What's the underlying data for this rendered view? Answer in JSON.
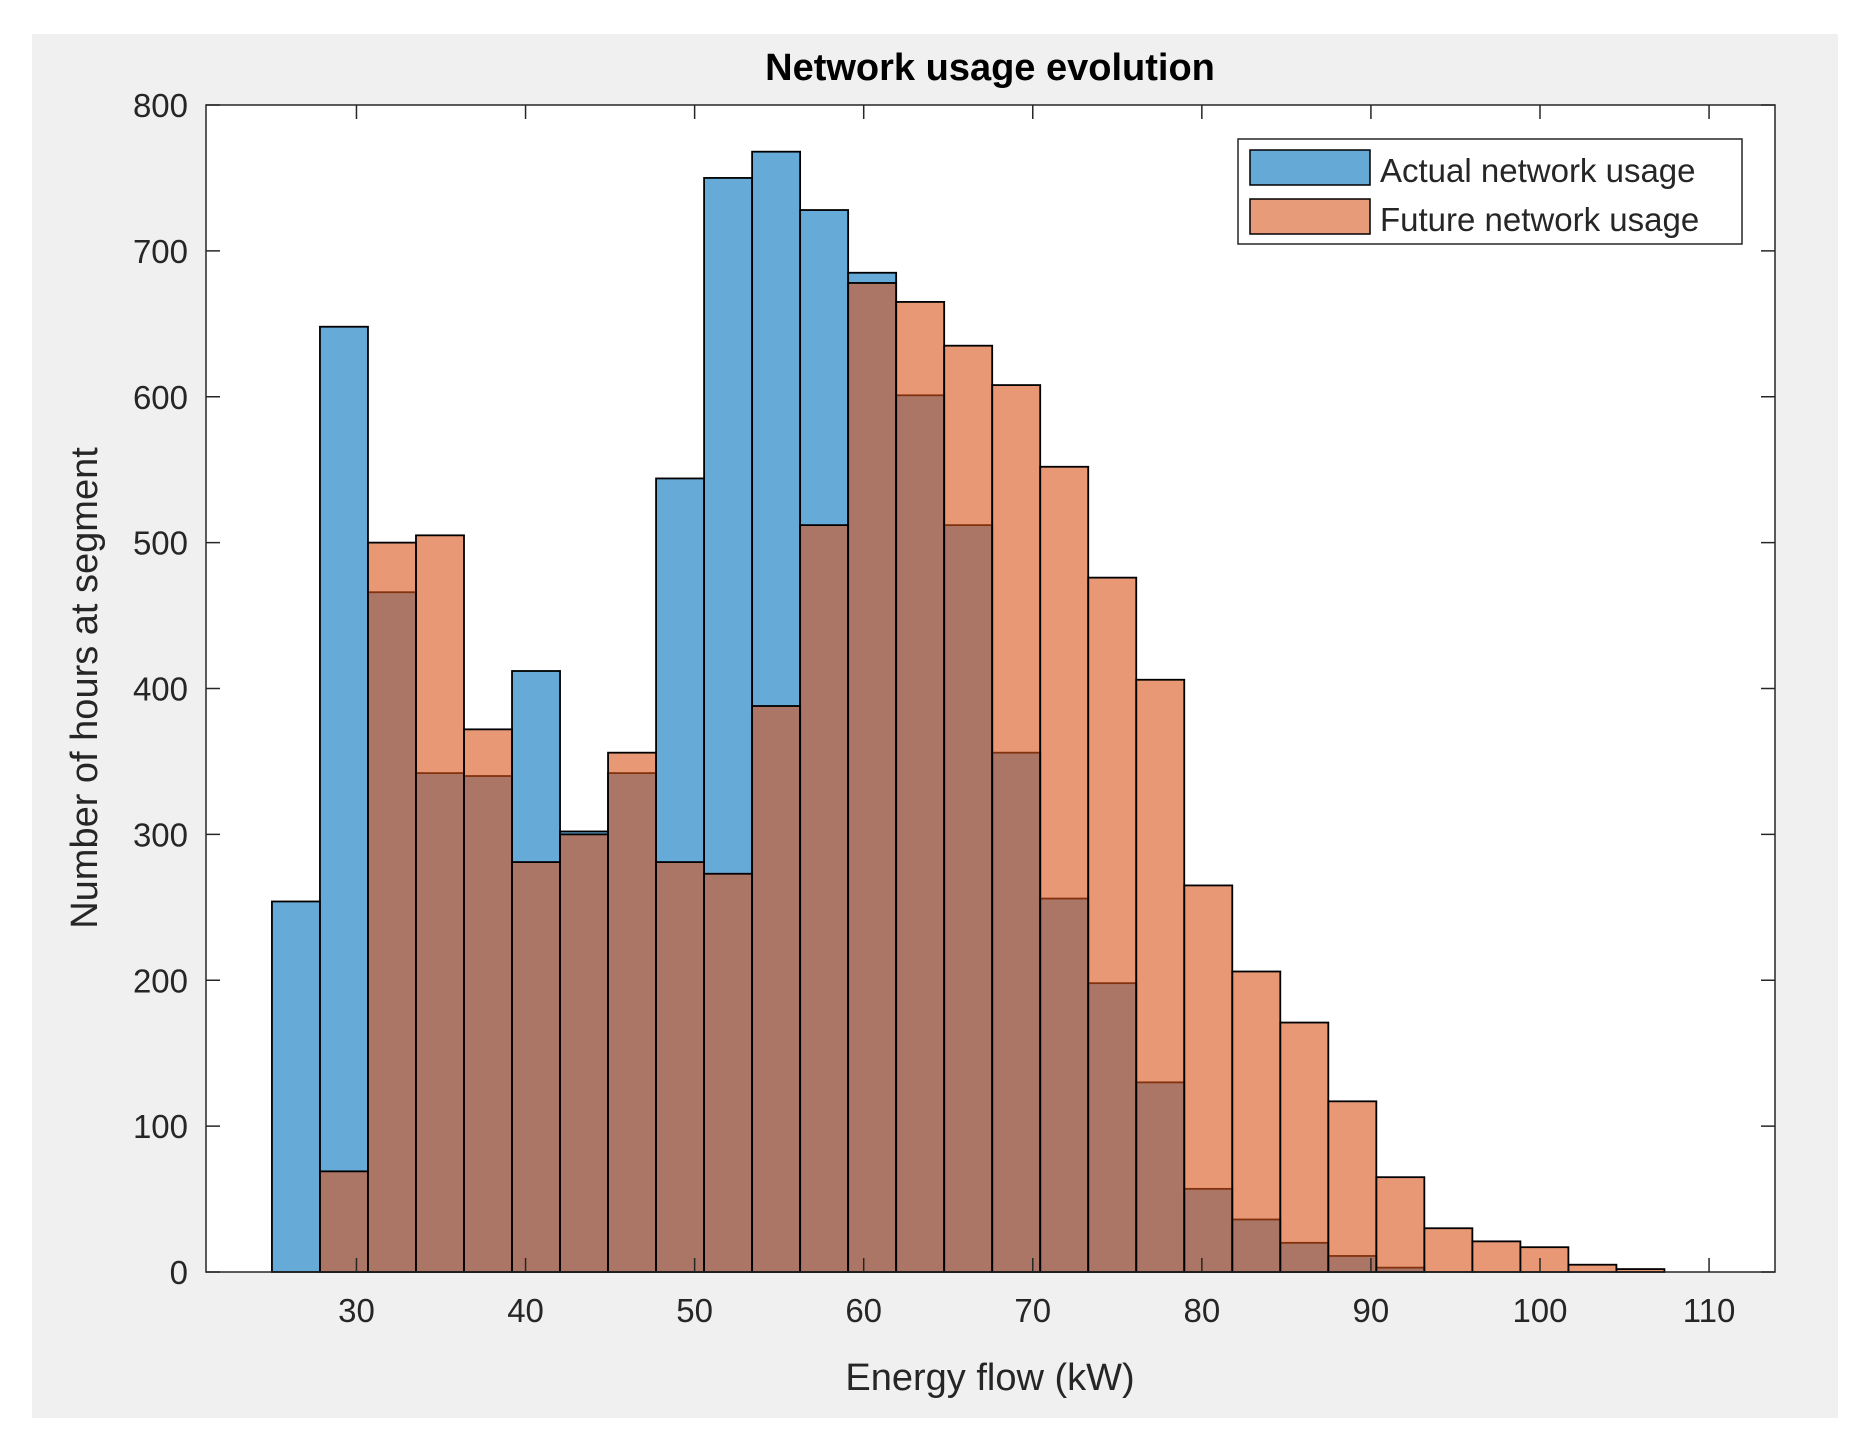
{
  "chart_data": {
    "type": "bar",
    "title": "Network usage evolution",
    "xlabel": "Energy flow (kW)",
    "ylabel": "Number of hours at segment",
    "xlim": [
      21.1,
      113.9
    ],
    "ylim": [
      0,
      800
    ],
    "xticks": [
      30,
      40,
      50,
      60,
      70,
      80,
      90,
      100,
      110
    ],
    "yticks": [
      0,
      100,
      200,
      300,
      400,
      500,
      600,
      700,
      800
    ],
    "bin_width": 2.84,
    "grid": false,
    "legend_position": "top-right",
    "series": [
      {
        "name": "Actual network usage",
        "color": "#0072BD",
        "bin_starts": [
          25.0,
          27.84,
          30.68,
          33.52,
          36.36,
          39.2,
          42.04,
          44.88,
          47.72,
          50.56,
          53.4,
          56.24,
          59.08,
          61.92,
          64.76,
          67.6,
          70.44,
          73.28,
          76.12,
          78.96,
          81.8,
          84.64,
          87.48,
          90.32
        ],
        "values": [
          254,
          648,
          466,
          342,
          340,
          412,
          302,
          342,
          544,
          750,
          768,
          728,
          685,
          601,
          512,
          356,
          256,
          198,
          130,
          57,
          36,
          20,
          11,
          3
        ]
      },
      {
        "name": "Future network usage",
        "color": "#D95319",
        "bin_starts": [
          27.84,
          30.68,
          33.52,
          36.36,
          39.2,
          42.04,
          44.88,
          47.72,
          50.56,
          53.4,
          56.24,
          59.08,
          61.92,
          64.76,
          67.6,
          70.44,
          73.28,
          76.12,
          78.96,
          81.8,
          84.64,
          87.48,
          90.32,
          93.16,
          96.0,
          98.84,
          101.68,
          104.52
        ],
        "values": [
          69,
          500,
          505,
          372,
          281,
          300,
          356,
          281,
          273,
          388,
          512,
          678,
          665,
          635,
          608,
          552,
          476,
          406,
          265,
          206,
          171,
          117,
          65,
          30,
          21,
          17,
          5,
          2
        ]
      }
    ]
  }
}
